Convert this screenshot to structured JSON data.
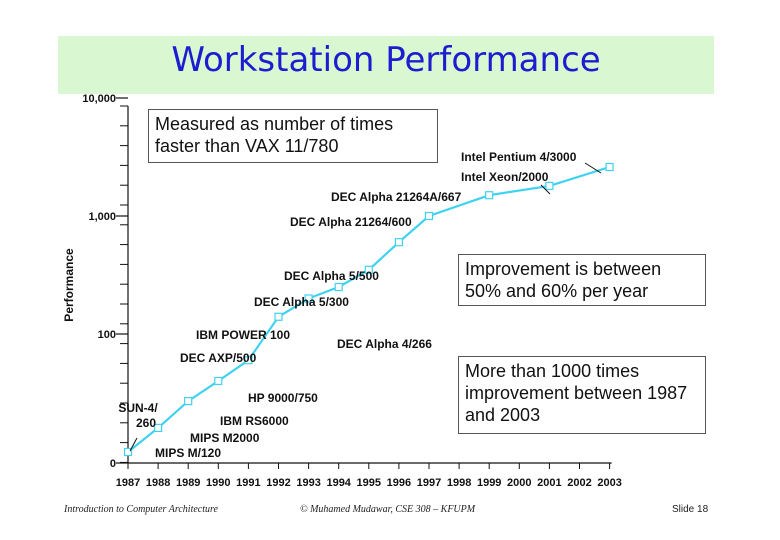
{
  "slide": {
    "title": "Workstation Performance",
    "notes": [
      "Measured as number of times faster than VAX 11/780",
      "Improvement is between 50% and 60% per year",
      "More than 1000 times improvement between 1987 and 2003"
    ],
    "footer_left": "Introduction to Computer Architecture",
    "footer_mid": "© Muhamed Mudawar, CSE 308 – KFUPM",
    "footer_right": "Slide 18"
  },
  "colors": {
    "title_banner": "#d9f7d1",
    "title_text": "#1c1cd0",
    "series_line": "#3fd2f0"
  },
  "chart_data": {
    "type": "line",
    "title": "",
    "ylabel": "Performance",
    "xlabel": "",
    "y_scale": "log",
    "y_ticks": [
      "0",
      "100",
      "1,000",
      "10,000"
    ],
    "x": [
      "1987",
      "1988",
      "1989",
      "1990",
      "1991",
      "1992",
      "1993",
      "1994",
      "1995",
      "1996",
      "1997",
      "1998",
      "1999",
      "2000",
      "2001",
      "2002",
      "2003"
    ],
    "series": [
      {
        "points": [
          {
            "x": 1987,
            "y": 10,
            "label": "SUN-4/ 260"
          },
          {
            "x": 1988,
            "y": 16,
            "label": "MIPS M/120"
          },
          {
            "x": 1989,
            "y": 27,
            "label": "MIPS M2000"
          },
          {
            "x": 1990,
            "y": 40,
            "label": "IBM RS6000"
          },
          {
            "x": 1991,
            "y": 60,
            "label": "HP 9000/750"
          },
          {
            "x": 1992,
            "y": 140,
            "label": "DEC AXP/500"
          },
          {
            "x": 1993,
            "y": 200,
            "label": "IBM POWER 100"
          },
          {
            "x": 1994,
            "y": 250,
            "label": "DEC Alpha 4/266"
          },
          {
            "x": 1995,
            "y": 350,
            "label": "DEC Alpha 5/300"
          },
          {
            "x": 1996,
            "y": 600,
            "label": "DEC Alpha 5/500"
          },
          {
            "x": 1997,
            "y": 1000,
            "label": "DEC Alpha 21264/600"
          },
          {
            "x": 1999,
            "y": 1500,
            "label": "DEC Alpha 21264A/667"
          },
          {
            "x": 2001,
            "y": 1800,
            "label": "Intel Xeon/2000"
          },
          {
            "x": 2003,
            "y": 2600,
            "label": "Intel Pentium 4/3000"
          }
        ]
      }
    ]
  }
}
